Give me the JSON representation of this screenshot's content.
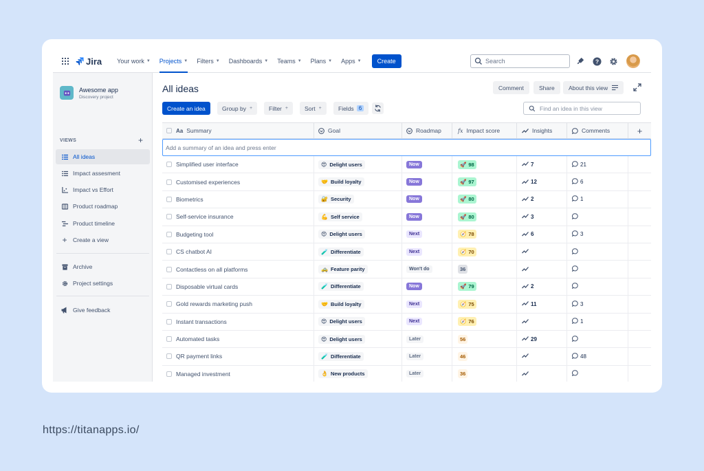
{
  "nav": {
    "logo": "Jira",
    "items": [
      {
        "label": "Your work",
        "active": false
      },
      {
        "label": "Projects",
        "active": true
      },
      {
        "label": "Filters",
        "active": false
      },
      {
        "label": "Dashboards",
        "active": false
      },
      {
        "label": "Teams",
        "active": false
      },
      {
        "label": "Plans",
        "active": false
      },
      {
        "label": "Apps",
        "active": false
      }
    ],
    "create": "Create",
    "search_placeholder": "Search"
  },
  "sidebar": {
    "project_name": "Awesome app",
    "project_type": "Discovery project",
    "views_label": "VIEWS",
    "views": [
      {
        "label": "All ideas",
        "icon": "list-icon"
      },
      {
        "label": "Impact assesment",
        "icon": "list-icon"
      },
      {
        "label": "Impact vs Effort",
        "icon": "matrix-icon"
      },
      {
        "label": "Product roadmap",
        "icon": "board-icon"
      },
      {
        "label": "Product timeline",
        "icon": "timeline-icon"
      },
      {
        "label": "Create a view",
        "icon": "plus-icon"
      }
    ],
    "archive": "Archive",
    "settings": "Project settings",
    "feedback": "Give feedback"
  },
  "main": {
    "title": "All ideas",
    "comment_btn": "Comment",
    "share_btn": "Share",
    "about_btn": "About this view",
    "create_idea": "Create an idea",
    "group_by": "Group by",
    "filter": "Filter",
    "sort": "Sort",
    "fields": "Fields",
    "fields_count": "6",
    "find_placeholder": "Find an idea in this view"
  },
  "table": {
    "headers": {
      "summary": "Summary",
      "goal": "Goal",
      "roadmap": "Roadmap",
      "impact": "Impact score",
      "insights": "Insights",
      "comments": "Comments"
    },
    "add_placeholder": "Add a summary of an idea and press enter",
    "rows": [
      {
        "summary": "Simplified user interface",
        "goal_emoji": "😍",
        "goal": "Delight users",
        "roadmap": "Now",
        "impact_emoji": "🚀",
        "impact": "98",
        "impact_style": "green",
        "insights": "7",
        "comments": "21"
      },
      {
        "summary": "Customised experiences",
        "goal_emoji": "🤝",
        "goal": "Build loyalty",
        "roadmap": "Now",
        "impact_emoji": "🚀",
        "impact": "97",
        "impact_style": "green",
        "insights": "12",
        "comments": "6"
      },
      {
        "summary": "Biometrics",
        "goal_emoji": "🔐",
        "goal": "Security",
        "roadmap": "Now",
        "impact_emoji": "🚀",
        "impact": "80",
        "impact_style": "green",
        "insights": "2",
        "comments": "1"
      },
      {
        "summary": "Self-service insurance",
        "goal_emoji": "💪",
        "goal": "Self service",
        "roadmap": "Now",
        "impact_emoji": "🚀",
        "impact": "80",
        "impact_style": "green",
        "insights": "3",
        "comments": ""
      },
      {
        "summary": "Budgeting tool",
        "goal_emoji": "😍",
        "goal": "Delight users",
        "roadmap": "Next",
        "impact_emoji": "🧭",
        "impact": "78",
        "impact_style": "yellow",
        "insights": "6",
        "comments": "3"
      },
      {
        "summary": "CS chatbot AI",
        "goal_emoji": "🧪",
        "goal": "Differentiate",
        "roadmap": "Next",
        "impact_emoji": "🧭",
        "impact": "70",
        "impact_style": "yellow",
        "insights": "",
        "comments": ""
      },
      {
        "summary": "Contactless on all platforms",
        "goal_emoji": "🚕",
        "goal": "Feature parity",
        "roadmap": "Won't do",
        "impact_emoji": "",
        "impact": "36",
        "impact_style": "gray",
        "insights": "",
        "comments": ""
      },
      {
        "summary": "Disposable virtual cards",
        "goal_emoji": "🧪",
        "goal": "Differentiate",
        "roadmap": "Now",
        "impact_emoji": "🚀",
        "impact": "79",
        "impact_style": "green",
        "insights": "2",
        "comments": ""
      },
      {
        "summary": "Gold rewards marketing push",
        "goal_emoji": "🤝",
        "goal": "Build loyalty",
        "roadmap": "Next",
        "impact_emoji": "🧭",
        "impact": "75",
        "impact_style": "yellow",
        "insights": "11",
        "comments": "3"
      },
      {
        "summary": "Instant transactions",
        "goal_emoji": "😍",
        "goal": "Delight users",
        "roadmap": "Next",
        "impact_emoji": "🧭",
        "impact": "76",
        "impact_style": "yellow",
        "insights": "",
        "comments": "1"
      },
      {
        "summary": "Automated tasks",
        "goal_emoji": "😍",
        "goal": "Delight users",
        "roadmap": "Later",
        "impact_emoji": "",
        "impact": "56",
        "impact_style": "plain",
        "insights": "29",
        "comments": ""
      },
      {
        "summary": "QR payment links",
        "goal_emoji": "🧪",
        "goal": "Differentiate",
        "roadmap": "Later",
        "impact_emoji": "",
        "impact": "46",
        "impact_style": "plain",
        "insights": "",
        "comments": "48"
      },
      {
        "summary": "Managed investment",
        "goal_emoji": "👌",
        "goal": "New products",
        "roadmap": "Later",
        "impact_emoji": "",
        "impact": "36",
        "impact_style": "plain",
        "insights": "",
        "comments": ""
      }
    ]
  },
  "footer_url": "https://titanapps.io/"
}
